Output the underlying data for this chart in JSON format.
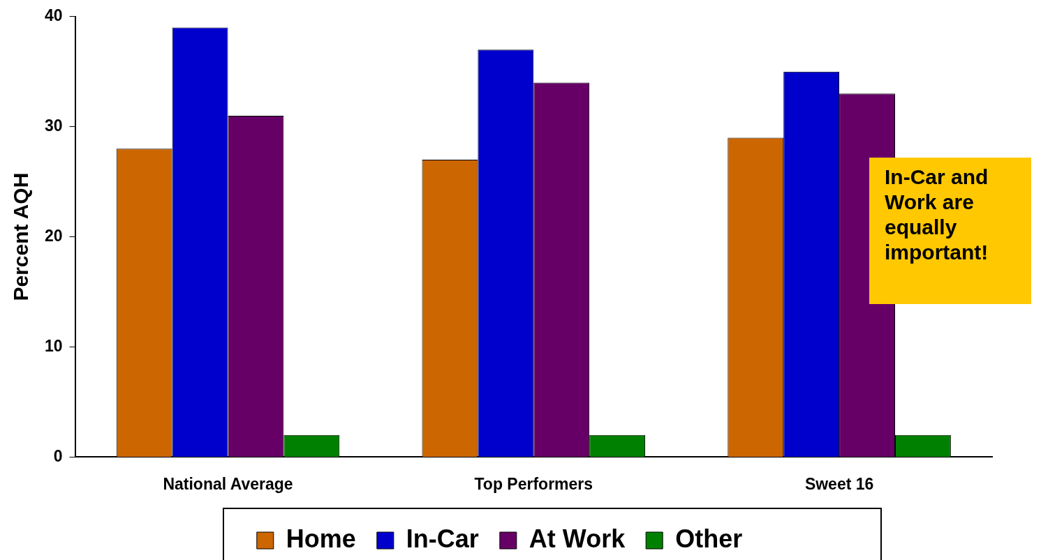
{
  "chart_data": {
    "type": "bar",
    "ylabel": "Percent AQH",
    "categories": [
      "National Average",
      "Top Performers",
      "Sweet 16"
    ],
    "series": [
      {
        "name": "Home",
        "color": "#cc6600",
        "values": [
          28,
          27,
          29
        ]
      },
      {
        "name": "In-Car",
        "color": "#0000cc",
        "values": [
          39,
          37,
          35
        ]
      },
      {
        "name": "At Work",
        "color": "#660066",
        "values": [
          31,
          34,
          33
        ]
      },
      {
        "name": "Other",
        "color": "#008000",
        "values": [
          2,
          2,
          2
        ]
      }
    ],
    "ylim": [
      0,
      40
    ],
    "yticks": [
      0,
      10,
      20,
      30,
      40
    ],
    "legend": "bottom",
    "annotations": [
      "In-Car and Work are equally important!"
    ]
  }
}
